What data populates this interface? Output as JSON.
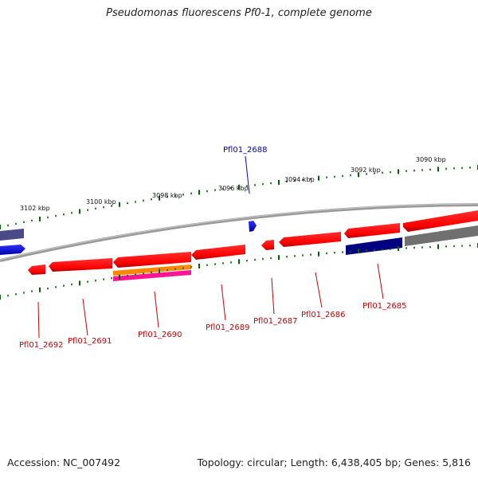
{
  "title": "Pseudomonas fluorescens Pf0-1, complete genome",
  "footer": {
    "accession": "Accession: NC_007492",
    "summary": "Topology: circular; Length: 6,438,405 bp; Genes: 5,816"
  },
  "ticks": [
    "3102 kbp",
    "3100 kbp",
    "3098 kbp",
    "3096 kbp",
    "3094 kbp",
    "3092 kbp",
    "3090 kbp"
  ],
  "genes": {
    "top": [
      {
        "name": "Pfl01_2688",
        "color": "#0000cc"
      }
    ],
    "bottom": [
      {
        "name": "Pfl01_2692",
        "color": "#cc0000"
      },
      {
        "name": "Pfl01_2691",
        "color": "#cc0000"
      },
      {
        "name": "Pfl01_2690",
        "color": "#cc0000"
      },
      {
        "name": "Pfl01_2689",
        "color": "#cc0000"
      },
      {
        "name": "Pfl01_2687",
        "color": "#cc0000"
      },
      {
        "name": "Pfl01_2686",
        "color": "#cc0000"
      },
      {
        "name": "Pfl01_2685",
        "color": "#cc0000"
      }
    ]
  },
  "colors": {
    "reverse_strand": "#ff0000",
    "forward_strand": "#0000ff",
    "backbone": "#808080",
    "tick": "#006600",
    "pseudo": "#ff8800",
    "rna": "#ff1493",
    "dark_feature": "#000080",
    "grey_feature": "#707070",
    "slate_feature": "#4a4a88"
  }
}
